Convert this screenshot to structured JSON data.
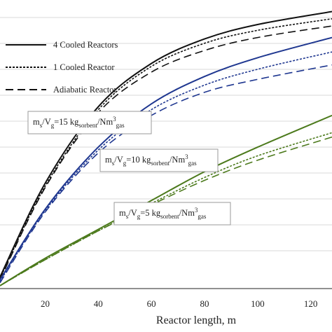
{
  "chart_data": {
    "type": "line",
    "title": "",
    "xlabel": "Reactor length, m",
    "ylabel": "",
    "xlim": [
      3,
      128
    ],
    "ylim": [
      0,
      1
    ],
    "x_ticks": [
      20,
      40,
      60,
      80,
      100,
      120
    ],
    "grid": "horizontal",
    "legend_position": "top-left",
    "legend": [
      {
        "label": "4 Cooled Reactors",
        "style": "solid"
      },
      {
        "label": "1 Cooled Reactor",
        "style": "dotted"
      },
      {
        "label": "Adiabatic Reactor",
        "style": "dashed"
      }
    ],
    "annotations": [
      {
        "group": "15",
        "pre": "m",
        "s_sub": "s",
        "mid": "/V",
        "g_sub": "g",
        "eq": "=15 kg",
        "sorbent_sub": "sorbent",
        "per": "/Nm",
        "sup": "3",
        "gas_sub": "gas"
      },
      {
        "group": "10",
        "pre": "m",
        "s_sub": "s",
        "mid": "/V",
        "g_sub": "g",
        "eq": "=10 kg",
        "sorbent_sub": "sorbent",
        "per": "/Nm",
        "sup": "3",
        "gas_sub": "gas"
      },
      {
        "group": "5",
        "pre": "m",
        "s_sub": "s",
        "mid": "/V",
        "g_sub": "g",
        "eq": "=5 kg",
        "sorbent_sub": "sorbent",
        "per": "/Nm",
        "sup": "3",
        "gas_sub": "gas"
      }
    ],
    "series": [
      {
        "group": "15",
        "style": "solid",
        "color": "#111111",
        "x": [
          3,
          20,
          40,
          60,
          80,
          100,
          128
        ],
        "y": [
          0.04,
          0.365,
          0.63,
          0.78,
          0.865,
          0.915,
          0.96
        ]
      },
      {
        "group": "15",
        "style": "dotted",
        "color": "#111111",
        "x": [
          3,
          20,
          40,
          60,
          80,
          100,
          128
        ],
        "y": [
          0.035,
          0.355,
          0.62,
          0.77,
          0.85,
          0.895,
          0.935
        ]
      },
      {
        "group": "15",
        "style": "dashed",
        "color": "#111111",
        "x": [
          3,
          20,
          40,
          60,
          80,
          100,
          128
        ],
        "y": [
          0.03,
          0.35,
          0.61,
          0.75,
          0.825,
          0.87,
          0.91
        ]
      },
      {
        "group": "10",
        "style": "solid",
        "color": "#1f3790",
        "x": [
          3,
          20,
          40,
          60,
          80,
          100,
          128
        ],
        "y": [
          0.03,
          0.275,
          0.49,
          0.64,
          0.735,
          0.8,
          0.87
        ]
      },
      {
        "group": "10",
        "style": "dotted",
        "color": "#1f3790",
        "x": [
          3,
          20,
          40,
          60,
          80,
          100,
          128
        ],
        "y": [
          0.025,
          0.27,
          0.48,
          0.62,
          0.705,
          0.76,
          0.82
        ]
      },
      {
        "group": "10",
        "style": "dashed",
        "color": "#1f3790",
        "x": [
          3,
          20,
          40,
          60,
          80,
          100,
          128
        ],
        "y": [
          0.02,
          0.265,
          0.47,
          0.6,
          0.68,
          0.725,
          0.775
        ]
      },
      {
        "group": "5",
        "style": "solid",
        "color": "#4c7a1c",
        "x": [
          3,
          20,
          40,
          60,
          80,
          100,
          128
        ],
        "y": [
          0.01,
          0.105,
          0.205,
          0.305,
          0.405,
          0.49,
          0.6
        ]
      },
      {
        "group": "5",
        "style": "dotted",
        "color": "#4c7a1c",
        "x": [
          3,
          20,
          40,
          60,
          80,
          100,
          128
        ],
        "y": [
          0.01,
          0.1,
          0.2,
          0.295,
          0.385,
          0.46,
          0.54
        ]
      },
      {
        "group": "5",
        "style": "dashed",
        "color": "#4c7a1c",
        "x": [
          3,
          20,
          40,
          60,
          80,
          100,
          128
        ],
        "y": [
          0.01,
          0.1,
          0.2,
          0.29,
          0.375,
          0.445,
          0.525
        ]
      }
    ]
  }
}
